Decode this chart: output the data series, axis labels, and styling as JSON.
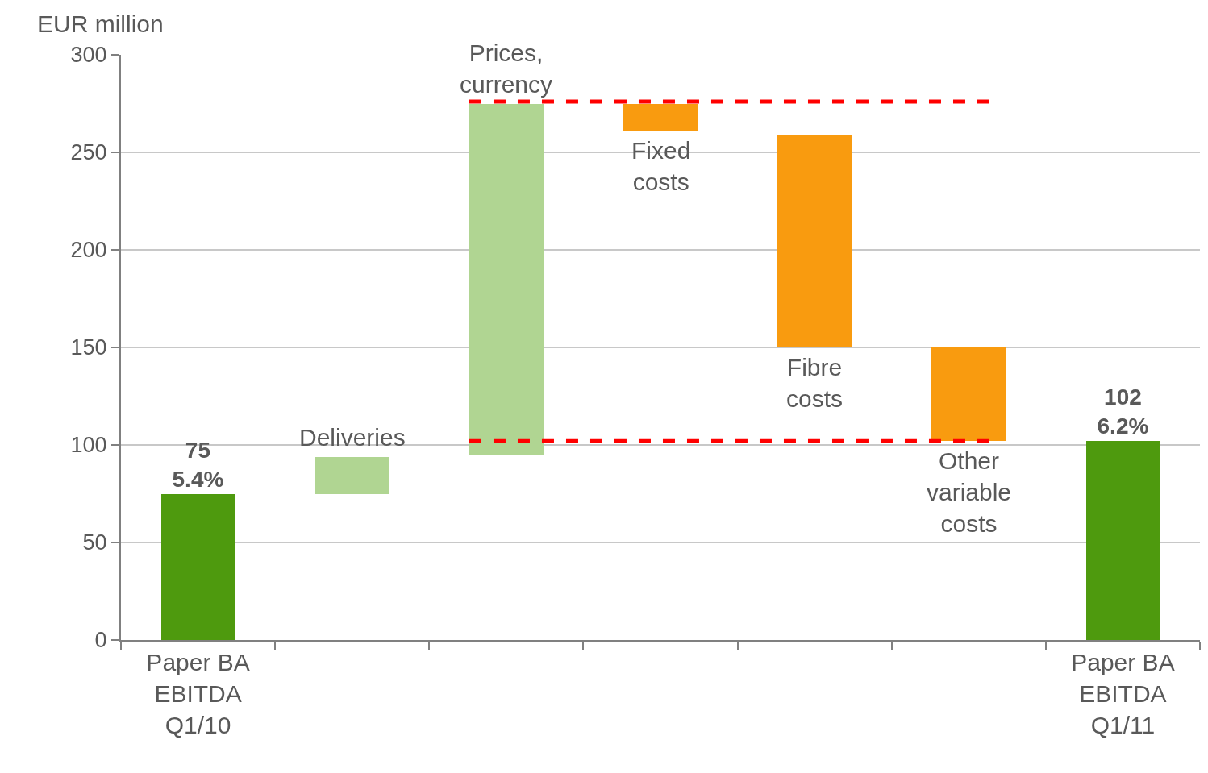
{
  "chart_data": {
    "type": "bar",
    "ylabel": "EUR million",
    "categories": [
      "Paper BA\nEBITDA\nQ1/10",
      null,
      null,
      null,
      null,
      null,
      "Paper BA\nEBITDA\nQ1/11"
    ],
    "values": [
      75,
      19,
      180,
      -14,
      -109,
      -48,
      102
    ],
    "base": [
      0,
      75,
      95,
      275,
      259,
      150,
      0
    ],
    "colors": [
      "#4e9a0e",
      "#b0d592",
      "#b0d592",
      "#f99b0f",
      "#f99b0f",
      "#f99b0f",
      "#4e9a0e"
    ],
    "value_labels": [
      "75\n5.4%",
      null,
      null,
      null,
      null,
      null,
      "102\n6.2%"
    ],
    "annotations": [
      "Deliveries",
      "Prices,\ncurrency",
      "Fixed\ncosts",
      "Fibre\ncosts",
      "Other\nvariable\ncosts"
    ],
    "ref_lines": [
      {
        "axis": "y",
        "value": 276,
        "color": "#ff0000",
        "line_style": "dashed"
      },
      {
        "axis": "y",
        "value": 102,
        "color": "#ff0000",
        "line_style": "dashed"
      }
    ],
    "ylim": [
      0,
      300
    ],
    "yticks": [
      0,
      50,
      100,
      150,
      200,
      250,
      300
    ],
    "grid": "y",
    "legend": false
  }
}
